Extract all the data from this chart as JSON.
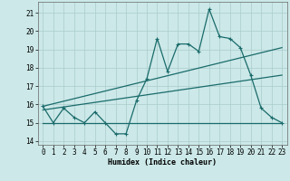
{
  "xlabel": "Humidex (Indice chaleur)",
  "xlim": [
    -0.5,
    23.5
  ],
  "ylim": [
    13.8,
    21.6
  ],
  "yticks": [
    14,
    15,
    16,
    17,
    18,
    19,
    20,
    21
  ],
  "xticks": [
    0,
    1,
    2,
    3,
    4,
    5,
    6,
    7,
    8,
    9,
    10,
    11,
    12,
    13,
    14,
    15,
    16,
    17,
    18,
    19,
    20,
    21,
    22,
    23
  ],
  "bg_color": "#cce8e8",
  "grid_color": "#aacccc",
  "line_color": "#1a6b6b",
  "line1": [
    15.9,
    15.0,
    15.8,
    15.3,
    15.0,
    15.6,
    15.0,
    14.4,
    14.4,
    16.2,
    17.4,
    19.6,
    17.8,
    19.3,
    19.3,
    18.9,
    21.2,
    19.7,
    19.6,
    19.1,
    17.6,
    15.8,
    15.3,
    15.0
  ],
  "line2_y": 15.0,
  "line2_xstart": 0,
  "line2_xend": 23,
  "line3_x": [
    0,
    23
  ],
  "line3_y": [
    15.9,
    19.1
  ],
  "line4_x": [
    0,
    23
  ],
  "line4_y": [
    15.7,
    17.6
  ]
}
